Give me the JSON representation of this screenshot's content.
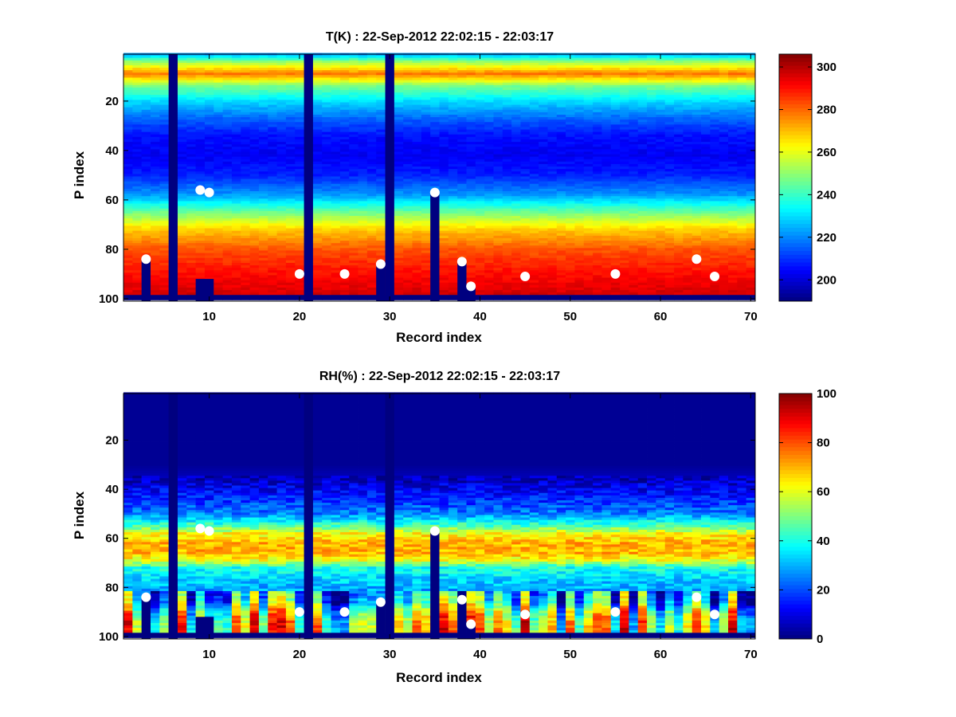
{
  "chart_data": [
    {
      "type": "heatmap",
      "title": "T(K) : 22-Sep-2012 22:02:15 - 22:03:17",
      "xlabel": "Record index",
      "ylabel": "P index",
      "xlim": [
        0.5,
        70.5
      ],
      "ylim": [
        1,
        101
      ],
      "y_reversed": true,
      "xticks": [
        10,
        20,
        30,
        40,
        50,
        60,
        70
      ],
      "yticks": [
        20,
        40,
        60,
        80,
        100
      ],
      "colormap": "jet",
      "clim": [
        190,
        306
      ],
      "colorbar_ticks": [
        200,
        220,
        240,
        260,
        280,
        300
      ],
      "profile_rows": [
        1,
        4,
        9,
        14,
        20,
        27,
        34,
        42,
        50,
        58,
        65,
        72,
        80,
        88,
        95,
        99
      ],
      "profile_values": [
        222,
        250,
        278,
        247,
        230,
        216,
        206,
        203,
        208,
        222,
        246,
        268,
        282,
        289,
        294,
        297
      ],
      "bottom_fill_row": 99,
      "empty_columns": [
        6,
        21,
        30
      ],
      "partial_columns": [
        {
          "x": 3,
          "y_from": 84
        },
        {
          "x": 35,
          "y_from": 57
        },
        {
          "x": 38,
          "y_from": 85
        },
        {
          "x": 29,
          "y_from": 86
        },
        {
          "x": 39,
          "y_from": 95
        }
      ],
      "blocks": [
        {
          "x_from": 9,
          "x_to": 10,
          "y_from": 92
        }
      ],
      "markers": [
        {
          "x": 3,
          "y": 84
        },
        {
          "x": 9,
          "y": 56
        },
        {
          "x": 10,
          "y": 57
        },
        {
          "x": 20,
          "y": 90
        },
        {
          "x": 25,
          "y": 90
        },
        {
          "x": 29,
          "y": 86
        },
        {
          "x": 35,
          "y": 57
        },
        {
          "x": 38,
          "y": 85
        },
        {
          "x": 39,
          "y": 95
        },
        {
          "x": 45,
          "y": 91
        },
        {
          "x": 55,
          "y": 90
        },
        {
          "x": 64,
          "y": 84
        },
        {
          "x": 66,
          "y": 91
        }
      ]
    },
    {
      "type": "heatmap",
      "title": "RH(%) : 22-Sep-2012 22:02:15 - 22:03:17",
      "xlabel": "Record index",
      "ylabel": "P index",
      "xlim": [
        0.5,
        70.5
      ],
      "ylim": [
        1,
        101
      ],
      "y_reversed": true,
      "xticks": [
        10,
        20,
        30,
        40,
        50,
        60,
        70
      ],
      "yticks": [
        20,
        40,
        60,
        80,
        100
      ],
      "colormap": "jet",
      "clim": [
        0,
        100
      ],
      "colorbar_ticks": [
        0,
        20,
        40,
        60,
        80,
        100
      ],
      "profile_rows": [
        1,
        30,
        36,
        44,
        50,
        55,
        58,
        62,
        66,
        69,
        72,
        76,
        82,
        86,
        90,
        95,
        99
      ],
      "profile_values": [
        2,
        2,
        6,
        16,
        25,
        45,
        62,
        70,
        70,
        60,
        40,
        34,
        28,
        33,
        50,
        60,
        60
      ],
      "bottom_fill_row": 99,
      "empty_columns": [
        6,
        21,
        30
      ],
      "partial_columns": [
        {
          "x": 3,
          "y_from": 84
        },
        {
          "x": 35,
          "y_from": 57
        },
        {
          "x": 38,
          "y_from": 85
        },
        {
          "x": 29,
          "y_from": 86
        },
        {
          "x": 39,
          "y_from": 95
        }
      ],
      "blocks": [
        {
          "x_from": 9,
          "x_to": 10,
          "y_from": 92
        }
      ],
      "markers": [
        {
          "x": 3,
          "y": 84
        },
        {
          "x": 9,
          "y": 56
        },
        {
          "x": 10,
          "y": 57
        },
        {
          "x": 20,
          "y": 90
        },
        {
          "x": 25,
          "y": 90
        },
        {
          "x": 29,
          "y": 86
        },
        {
          "x": 35,
          "y": 57
        },
        {
          "x": 38,
          "y": 85
        },
        {
          "x": 39,
          "y": 95
        },
        {
          "x": 45,
          "y": 91
        },
        {
          "x": 55,
          "y": 90
        },
        {
          "x": 64,
          "y": 84
        },
        {
          "x": 66,
          "y": 91
        }
      ]
    }
  ]
}
